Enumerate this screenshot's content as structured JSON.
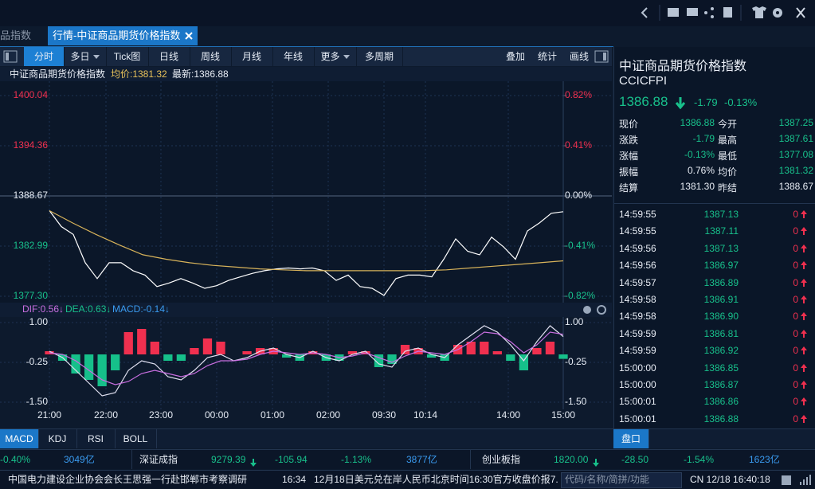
{
  "tabs": [
    "品指数",
    "行情-中证商品期货价格指数"
  ],
  "toolbar": {
    "left": [
      "分时",
      "多日",
      "Tick图",
      "日线",
      "周线",
      "月线",
      "年线",
      "更多",
      "多周期"
    ],
    "right": [
      "叠加",
      "统计",
      "画线"
    ]
  },
  "quote_info": {
    "name": "中证商品期货价格指数",
    "avg": "均价:1381.32",
    "latest": "最新:1386.88"
  },
  "price_chart": {
    "type": "line",
    "ylim": [
      1377.3,
      1400.04
    ],
    "yticks": [
      1400.04,
      1394.36,
      1388.67,
      1382.99,
      {
        "value": 1377.3,
        "label": "1377.30"
      }
    ],
    "y2lim": [
      -0.82,
      0.82
    ],
    "y2ticks": [
      {
        "value": 0.82,
        "label": "0.82%"
      },
      {
        "value": 0.41,
        "label": "0.41%"
      },
      {
        "value": 0,
        "label": "0.00%"
      },
      {
        "value": -0.41,
        "label": "-0.41%"
      },
      {
        "value": -0.82,
        "label": "-0.82%"
      }
    ],
    "x_labels": [
      "21:00",
      "22:00",
      "23:00",
      "00:00",
      "01:00",
      "02:00",
      "09:30",
      "10:14",
      "14:00",
      "15:00"
    ],
    "series": [
      {
        "color": "#ffffff",
        "values": [
          1387.0,
          1385.2,
          1384.3,
          1381.1,
          1379.3,
          1381.1,
          1381.1,
          1380.2,
          1379.7,
          1378.4,
          1378.8,
          1379.3,
          1378.8,
          1378.2,
          1378.5,
          1379.1,
          1379.5,
          1379.9,
          1380.2,
          1380.4,
          1380.5,
          1380.4,
          1380.5,
          1380.2,
          1379.1,
          1379.7,
          1378.4,
          1378.2,
          1377.4,
          1379.3,
          1379.7,
          1379.7,
          1379.5,
          1381.5,
          1383.8,
          1382.4,
          1382.0,
          1384.0,
          1382.9,
          1381.5,
          1384.7,
          1385.6,
          1386.7,
          1386.88
        ]
      },
      {
        "color": "#d8b35a",
        "values": [
          1387.0,
          1385.6,
          1384.3,
          1383.1,
          1382.0,
          1381.5,
          1381.1,
          1380.8,
          1380.6,
          1380.4,
          1380.3,
          1380.2,
          1380.2,
          1380.2,
          1380.2,
          1380.2,
          1380.2,
          1380.3,
          1380.5,
          1380.7,
          1380.9,
          1381.1,
          1381.32
        ]
      }
    ]
  },
  "macd": {
    "labels": [
      "DIF:0.56↓",
      "DEA:0.63↓",
      "MACD:-0.14↓"
    ],
    "ylim": [
      -1.5,
      1.0
    ],
    "yticks": [
      {
        "value": 1.0,
        "label": "1.00"
      },
      -0.25,
      {
        "value": -1.5,
        "label": "-1.50"
      }
    ],
    "series": [
      {
        "color": "#e0e0f0",
        "values": [
          0.1,
          -0.1,
          -0.5,
          -0.9,
          -1.3,
          -1.2,
          -0.5,
          -0.2,
          -0.3,
          -0.7,
          -0.8,
          -0.5,
          -0.1,
          0.0,
          -0.2,
          -0.1,
          0.1,
          0.2,
          0.0,
          -0.1,
          0.1,
          -0.1,
          -0.2,
          0.0,
          0.1,
          -0.3,
          -0.4,
          0.1,
          0.2,
          0.0,
          -0.1,
          0.3,
          0.6,
          0.9,
          0.7,
          0.3,
          -0.2,
          0.4,
          0.9,
          0.56
        ]
      },
      {
        "color": "#c86ee0",
        "values": [
          0.05,
          0.0,
          -0.2,
          -0.5,
          -0.8,
          -0.95,
          -0.85,
          -0.6,
          -0.5,
          -0.6,
          -0.7,
          -0.6,
          -0.35,
          -0.2,
          -0.2,
          -0.15,
          0.0,
          0.1,
          0.05,
          0.0,
          0.05,
          0.0,
          -0.1,
          -0.05,
          0.05,
          -0.1,
          -0.25,
          -0.05,
          0.1,
          0.05,
          0.0,
          0.15,
          0.4,
          0.7,
          0.65,
          0.4,
          0.05,
          0.3,
          0.7,
          0.63
        ]
      }
    ],
    "histogram": [
      0.1,
      -0.2,
      -0.6,
      -0.8,
      -1.0,
      -0.5,
      0.7,
      0.8,
      0.4,
      -0.2,
      -0.2,
      0.2,
      0.5,
      0.4,
      0.0,
      0.1,
      0.2,
      0.2,
      -0.1,
      -0.2,
      0.1,
      -0.2,
      -0.2,
      0.1,
      0.1,
      -0.4,
      -0.3,
      0.3,
      0.2,
      -0.1,
      -0.2,
      0.3,
      0.4,
      0.4,
      0.1,
      -0.2,
      -0.5,
      0.2,
      0.4,
      -0.14
    ],
    "up_color": "#f0304f",
    "down_color": "#16c08a"
  },
  "indicator_tabs": [
    "MACD",
    "KDJ",
    "RSI",
    "BOLL"
  ],
  "side_panel": {
    "title": "中证商品期货价格指数",
    "code": "CCICFPI",
    "price": "1386.88",
    "change": "-1.79",
    "change_pct": "-0.13%",
    "table": [
      [
        "现价",
        "1386.88",
        "今开",
        "1387.25"
      ],
      [
        "涨跌",
        "-1.79",
        "最高",
        "1387.61"
      ],
      [
        "涨幅",
        "-0.13%",
        "最低",
        "1377.08"
      ],
      [
        "振幅",
        "0.76%",
        "均价",
        "1381.32"
      ],
      [
        "结算",
        "1381.30",
        "昨结",
        "1388.67"
      ]
    ],
    "ticks": [
      [
        "14:59:55",
        "1387.13",
        "0"
      ],
      [
        "14:59:55",
        "1387.11",
        "0"
      ],
      [
        "14:59:56",
        "1387.13",
        "0"
      ],
      [
        "14:59:56",
        "1386.97",
        "0"
      ],
      [
        "14:59:57",
        "1386.89",
        "0"
      ],
      [
        "14:59:58",
        "1386.91",
        "0"
      ],
      [
        "14:59:58",
        "1386.90",
        "0"
      ],
      [
        "14:59:59",
        "1386.81",
        "0"
      ],
      [
        "14:59:59",
        "1386.92",
        "0"
      ],
      [
        "15:00:00",
        "1386.85",
        "0"
      ],
      [
        "15:00:00",
        "1386.87",
        "0"
      ],
      [
        "15:00:01",
        "1386.86",
        "0"
      ],
      [
        "15:00:01",
        "1386.88",
        "0"
      ]
    ],
    "tab": "盘口"
  },
  "ticker": [
    "-0.40%",
    "3049亿",
    "深证成指",
    "9279.39",
    "-105.94",
    "-1.13%",
    "3877亿",
    "创业板指",
    "1820.00",
    "-28.50",
    "-1.54%",
    "1623亿"
  ],
  "status_bar": {
    "news": "中国电力建设企业协会会长王思强一行赴邯郸市考察调研",
    "time": "16:34",
    "news2": "12月18日美元兑在岸人民币北京时间16:30官方收盘价报7.",
    "search": "代码/名称/简拼/功能",
    "clock": "CN 12/18 16:40:18"
  }
}
